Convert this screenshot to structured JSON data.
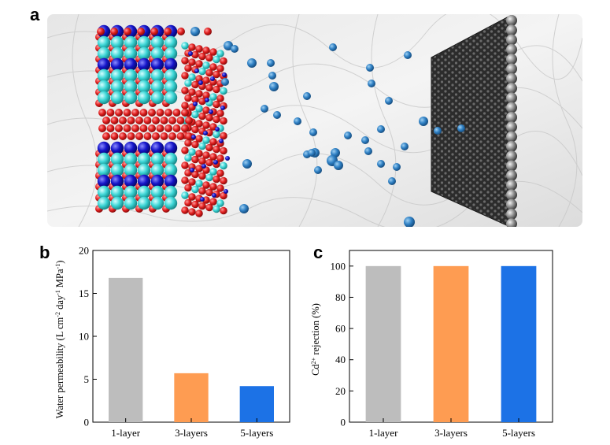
{
  "panels": {
    "a": {
      "label": "a"
    },
    "b": {
      "label": "b"
    },
    "c": {
      "label": "c"
    }
  },
  "colors": {
    "gray_bar": "#bdbdbd",
    "orange_bar": "#fe9c52",
    "blue_bar": "#1c72e6",
    "ion": "#2f80c4",
    "oxygen": "#e01e1e",
    "cyan_atom": "#3cd6d6",
    "dark_blue_atom": "#1414c8",
    "graphene": "#3a3a3a"
  },
  "chart_data": [
    {
      "type": "bar",
      "panel": "b",
      "categories": [
        "1-layer",
        "3-layers",
        "5-layers"
      ],
      "values": [
        16.8,
        5.7,
        4.2
      ],
      "bar_colors": [
        "#bdbdbd",
        "#fe9c52",
        "#1c72e6"
      ],
      "ylabel_main": "Water permeability (L cm",
      "ylabel_sup1": "-2",
      "ylabel_mid": " day",
      "ylabel_sup2": "-1",
      "ylabel_tail": " MPa",
      "ylabel_sup3": "-1",
      "ylabel_end": ")",
      "ylim": [
        0,
        20
      ],
      "yticks": [
        0,
        5,
        10,
        15,
        20
      ],
      "grid": false
    },
    {
      "type": "bar",
      "panel": "c",
      "categories": [
        "1-layer",
        "3-layers",
        "5-layers"
      ],
      "values": [
        100,
        100,
        100
      ],
      "bar_colors": [
        "#bdbdbd",
        "#fe9c52",
        "#1c72e6"
      ],
      "ylabel_main": "Cd",
      "ylabel_sup1": "2+",
      "ylabel_tail": " rejection (%)",
      "ylim": [
        0,
        110
      ],
      "yticks": [
        0,
        20,
        40,
        60,
        80,
        100
      ],
      "grid": false
    }
  ]
}
